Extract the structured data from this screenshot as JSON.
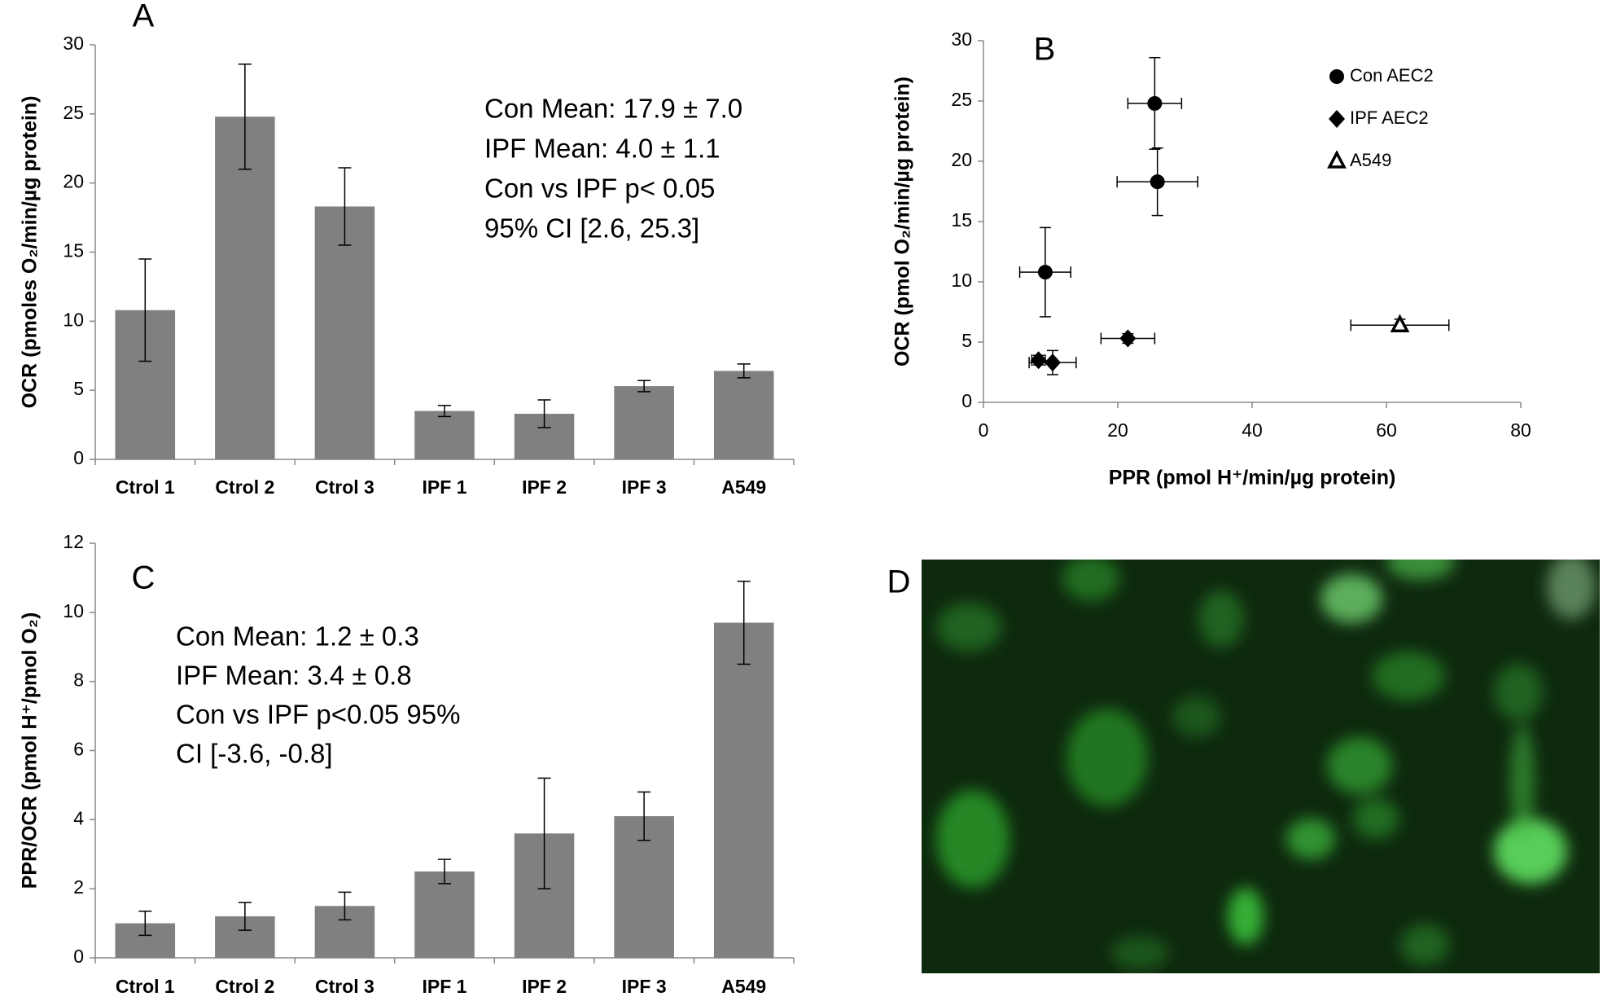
{
  "chart_data": [
    {
      "type": "bar",
      "panel": "A",
      "ylabel": "OCR (pmoles O₂/min/µg protein)",
      "categories": [
        "Ctrol 1",
        "Ctrol 2",
        "Ctrol 3",
        "IPF 1",
        "IPF 2",
        "IPF 3",
        "A549"
      ],
      "values": [
        10.8,
        24.8,
        18.3,
        3.5,
        3.3,
        5.3,
        6.4
      ],
      "errors": [
        3.7,
        3.8,
        2.8,
        0.4,
        1.0,
        0.4,
        0.5
      ],
      "color": "#808080",
      "ylim": [
        0,
        30
      ],
      "yticks": [
        0,
        5,
        10,
        15,
        20,
        25,
        30
      ],
      "grid": false,
      "annotations": [
        "Con Mean: 17.9 ± 7.0",
        "IPF Mean: 4.0 ± 1.1",
        "Con vs IPF p< 0.05",
        "95% CI [2.6, 25.3]"
      ]
    },
    {
      "type": "scatter",
      "panel": "B",
      "xlabel": "PPR (pmol H⁺/min/µg protein)",
      "ylabel": "OCR (pmol O₂/min/µg protein)",
      "series": [
        {
          "name": "Con AEC2",
          "color": "#000000",
          "marker": "circle",
          "x": [
            9.2,
            25.5,
            25.9
          ],
          "x_errors": [
            3.8,
            4.0,
            6.0
          ],
          "values": [
            10.8,
            24.8,
            18.3
          ],
          "errors": [
            3.7,
            3.8,
            2.8
          ]
        },
        {
          "name": "IPF AEC2",
          "color": "#000000",
          "marker": "diamond",
          "x": [
            8.2,
            10.3,
            21.5
          ],
          "x_errors": [
            1.0,
            3.5,
            4.0
          ],
          "values": [
            3.5,
            3.3,
            5.3
          ],
          "errors": [
            0.4,
            1.0,
            0.4
          ]
        },
        {
          "name": "A549",
          "color": "#000000",
          "marker": "triangle-open",
          "x": [
            62
          ],
          "x_errors": [
            7.3
          ],
          "values": [
            6.4
          ],
          "errors": [
            0.5
          ]
        }
      ],
      "xlim": [
        0,
        80
      ],
      "xticks": [
        0,
        20,
        40,
        60,
        80
      ],
      "ylim": [
        0,
        30
      ],
      "yticks": [
        0,
        5,
        10,
        15,
        20,
        25,
        30
      ],
      "grid": false,
      "legend": "upper right"
    },
    {
      "type": "bar",
      "panel": "C",
      "ylabel": "PPR/OCR (pmol H⁺/pmol O₂)",
      "categories": [
        "Ctrol 1",
        "Ctrol 2",
        "Ctrol 3",
        "IPF 1",
        "IPF 2",
        "IPF 3",
        "A549"
      ],
      "values": [
        1.0,
        1.2,
        1.5,
        2.5,
        3.6,
        4.1,
        9.7
      ],
      "errors": [
        0.35,
        0.4,
        0.4,
        0.35,
        1.6,
        0.7,
        1.2
      ],
      "color": "#808080",
      "ylim": [
        0,
        12
      ],
      "yticks": [
        0,
        2,
        4,
        6,
        8,
        10,
        12
      ],
      "grid": false,
      "annotations": [
        "Con Mean: 1.2 ± 0.3",
        "IPF Mean: 3.4 ± 0.8",
        "Con vs IPF p<0.05 95%",
        "CI [-3.6, -0.8]"
      ]
    }
  ],
  "image_panel": {
    "panel": "D"
  }
}
